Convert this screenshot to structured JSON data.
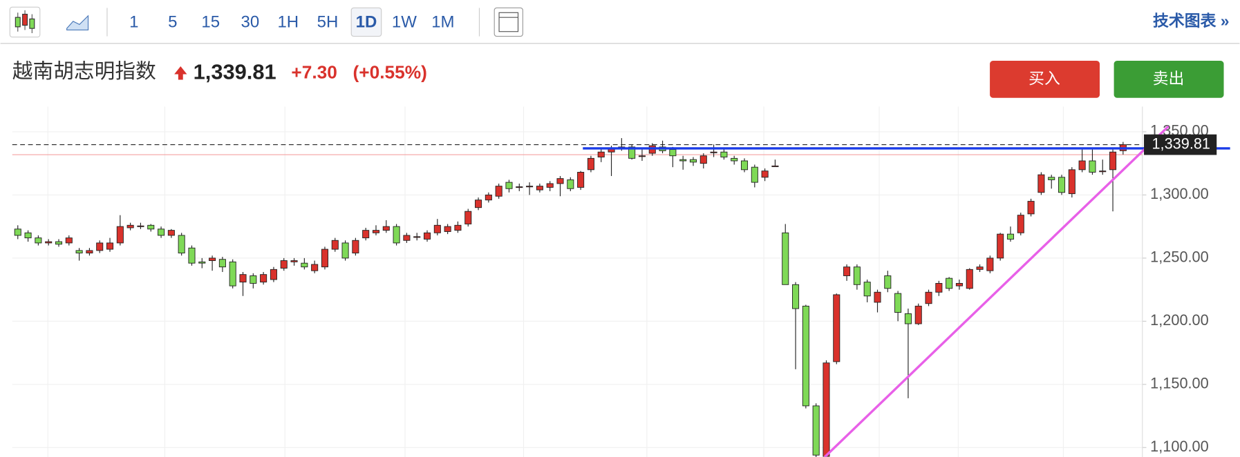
{
  "toolbar": {
    "intervals": [
      "1",
      "5",
      "15",
      "30",
      "1H",
      "5H",
      "1D",
      "1W",
      "1M"
    ],
    "selected": "1D",
    "link": "技术图表 »"
  },
  "header": {
    "name": "越南胡志明指数",
    "price": "1,339.81",
    "change": "+7.30",
    "change_pct": "(+0.55%)"
  },
  "buttons": {
    "buy": "买入",
    "sell": "卖出"
  },
  "chart_data": {
    "type": "candlestick",
    "up_color": "#d9322c",
    "down_color": "#7fd957",
    "ylim": [
      1092.5,
      1370
    ],
    "yticks": [
      {
        "value": 1100,
        "label": "1,100.00"
      },
      {
        "value": 1150,
        "label": "1,150.00"
      },
      {
        "value": 1200,
        "label": "1,200.00"
      },
      {
        "value": 1250,
        "label": "1,250.00"
      },
      {
        "value": 1300,
        "label": "1,300.00"
      },
      {
        "value": 1350,
        "label": "1,350.00"
      }
    ],
    "last_price": {
      "value": 1339.81,
      "label": "1,339.81"
    },
    "open": [
      1273,
      1270,
      1266,
      1262,
      1263,
      1262,
      1256,
      1254,
      1256,
      1257,
      1262,
      1274,
      1275,
      1276,
      1273,
      1268,
      1268,
      1258,
      1247,
      1248,
      1249,
      1247,
      1231,
      1236,
      1231,
      1233,
      1242,
      1247,
      1246,
      1240,
      1243,
      1257,
      1262,
      1254,
      1266,
      1270,
      1272,
      1275,
      1264,
      1267,
      1265,
      1270,
      1271,
      1272,
      1277,
      1290,
      1296,
      1299,
      1310,
      1306,
      1307,
      1304,
      1306,
      1309,
      1312,
      1306,
      1320,
      1330,
      1334,
      1337,
      1338,
      1331,
      1333,
      1338,
      1336,
      1328,
      1328,
      1325,
      1334,
      1334,
      1329,
      1327,
      1322,
      1314,
      1323,
      1270,
      1229,
      1212,
      1133,
      1093,
      1168,
      1236,
      1243,
      1231,
      1215,
      1236,
      1222,
      1206,
      1198,
      1214,
      1223,
      1234,
      1228,
      1226,
      1241,
      1240,
      1250,
      1269,
      1270,
      1285,
      1302,
      1314,
      1314,
      1301,
      1320,
      1327,
      1319,
      1320,
      1335
    ],
    "high": [
      1276,
      1272,
      1268,
      1265,
      1265,
      1268,
      1258,
      1258,
      1264,
      1266,
      1284,
      1278,
      1278,
      1277,
      1275,
      1273,
      1270,
      1260,
      1250,
      1252,
      1251,
      1249,
      1239,
      1238,
      1239,
      1243,
      1250,
      1250,
      1250,
      1248,
      1259,
      1266,
      1264,
      1266,
      1274,
      1276,
      1280,
      1277,
      1270,
      1270,
      1272,
      1281,
      1277,
      1279,
      1289,
      1298,
      1302,
      1309,
      1312,
      1309,
      1310,
      1309,
      1311,
      1315,
      1314,
      1319,
      1331,
      1337,
      1339,
      1345,
      1340,
      1336,
      1341,
      1343,
      1338,
      1331,
      1330,
      1333,
      1340,
      1337,
      1331,
      1329,
      1324,
      1321,
      1328,
      1277,
      1231,
      1213,
      1135,
      1169,
      1222,
      1245,
      1245,
      1233,
      1225,
      1240,
      1224,
      1210,
      1214,
      1225,
      1232,
      1235,
      1233,
      1242,
      1245,
      1252,
      1270,
      1275,
      1286,
      1297,
      1318,
      1316,
      1316,
      1322,
      1336,
      1336,
      1328,
      1336,
      1342
    ],
    "low": [
      1265,
      1263,
      1260,
      1260,
      1259,
      1260,
      1248,
      1252,
      1254,
      1255,
      1260,
      1272,
      1273,
      1271,
      1266,
      1266,
      1252,
      1244,
      1242,
      1240,
      1239,
      1226,
      1220,
      1226,
      1229,
      1231,
      1240,
      1244,
      1241,
      1238,
      1241,
      1255,
      1248,
      1252,
      1264,
      1268,
      1270,
      1260,
      1262,
      1264,
      1263,
      1268,
      1269,
      1270,
      1275,
      1288,
      1294,
      1297,
      1302,
      1303,
      1300,
      1302,
      1303,
      1299,
      1303,
      1304,
      1318,
      1326,
      1315,
      1335,
      1328,
      1327,
      1331,
      1333,
      1322,
      1320,
      1323,
      1321,
      1330,
      1328,
      1324,
      1318,
      1306,
      1311,
      1323,
      1229,
      1162,
      1131,
      1092,
      1092,
      1166,
      1232,
      1225,
      1215,
      1207,
      1223,
      1200,
      1139,
      1197,
      1212,
      1220,
      1224,
      1225,
      1225,
      1239,
      1238,
      1248,
      1263,
      1268,
      1283,
      1300,
      1305,
      1300,
      1298,
      1318,
      1316,
      1316,
      1287,
      1332
    ],
    "close": [
      1268,
      1266,
      1262,
      1263,
      1261,
      1266,
      1254,
      1256,
      1262,
      1262,
      1275,
      1276,
      1275.5,
      1273,
      1268,
      1272,
      1254,
      1246,
      1246,
      1250,
      1243,
      1228,
      1237,
      1230,
      1237,
      1241,
      1248,
      1248,
      1243,
      1245,
      1257,
      1264,
      1250,
      1264,
      1272,
      1272,
      1275,
      1262,
      1268,
      1267,
      1270,
      1276,
      1275,
      1276,
      1287,
      1296,
      1300,
      1307,
      1305,
      1306.5,
      1307,
      1307,
      1309,
      1313,
      1305,
      1318,
      1329,
      1334,
      1337,
      1338,
      1329,
      1331,
      1339,
      1335,
      1331,
      1327,
      1326,
      1331,
      1334,
      1330,
      1327,
      1320,
      1310,
      1319,
      1323,
      1229,
      1210,
      1133,
      1094,
      1167,
      1221,
      1243,
      1229,
      1220,
      1223,
      1226,
      1207,
      1198,
      1212,
      1223,
      1230,
      1226,
      1230,
      1241,
      1243,
      1250,
      1269,
      1265,
      1284,
      1295,
      1316,
      1312,
      1302,
      1320,
      1327,
      1318,
      1319,
      1334,
      1339.81
    ]
  }
}
